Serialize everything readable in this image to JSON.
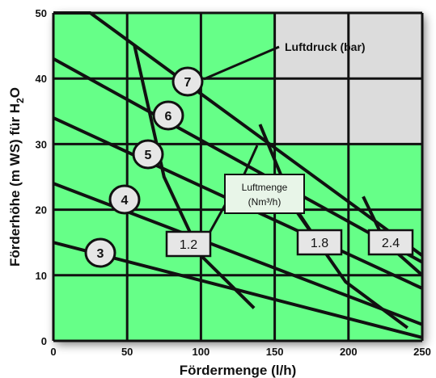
{
  "chart_data": {
    "type": "line",
    "xlabel": "Fördermenge (l/h)",
    "ylabel_main": "Förderhöhe (m WS) für H",
    "ylabel_sub": "2",
    "ylabel_end": "O",
    "xlim": [
      0,
      250
    ],
    "ylim": [
      0,
      50
    ],
    "xticks": [
      0,
      50,
      100,
      150,
      200,
      250
    ],
    "yticks": [
      0,
      10,
      20,
      30,
      40,
      50
    ],
    "x_tick_labels": [
      "0",
      "50",
      "100",
      "150",
      "200",
      "250"
    ],
    "y_tick_labels": [
      "0",
      "10",
      "20",
      "30",
      "40",
      "50"
    ],
    "grid": true,
    "background_color": "#66ff88",
    "inset_color": "#dcdcdc",
    "line_color": "#111111",
    "pressure_callout": "Luftdruck (bar)",
    "air_callout_line1": "Luftmenge",
    "air_callout_line2": "(Nm³/h)",
    "pressure_series": [
      {
        "label": "3",
        "points": [
          [
            0,
            15
          ],
          [
            250,
            0.5
          ]
        ]
      },
      {
        "label": "4",
        "points": [
          [
            0,
            24
          ],
          [
            250,
            2.5
          ]
        ]
      },
      {
        "label": "5",
        "points": [
          [
            0,
            34
          ],
          [
            250,
            8
          ]
        ]
      },
      {
        "label": "6",
        "points": [
          [
            0,
            43
          ],
          [
            250,
            12
          ]
        ]
      },
      {
        "label": "7",
        "points": [
          [
            0,
            50
          ],
          [
            25,
            50
          ],
          [
            250,
            13
          ]
        ]
      }
    ],
    "air_series": [
      {
        "label": "1.2",
        "points": [
          [
            55,
            45
          ],
          [
            62,
            38
          ],
          [
            75,
            25
          ],
          [
            100,
            13
          ],
          [
            136,
            5
          ]
        ]
      },
      {
        "label": "1.8",
        "points": [
          [
            140,
            33
          ],
          [
            164,
            20
          ],
          [
            198,
            9
          ],
          [
            240,
            2
          ]
        ]
      },
      {
        "label": "2.4",
        "points": [
          [
            210,
            22
          ],
          [
            225,
            15
          ],
          [
            250,
            10
          ]
        ]
      }
    ]
  }
}
